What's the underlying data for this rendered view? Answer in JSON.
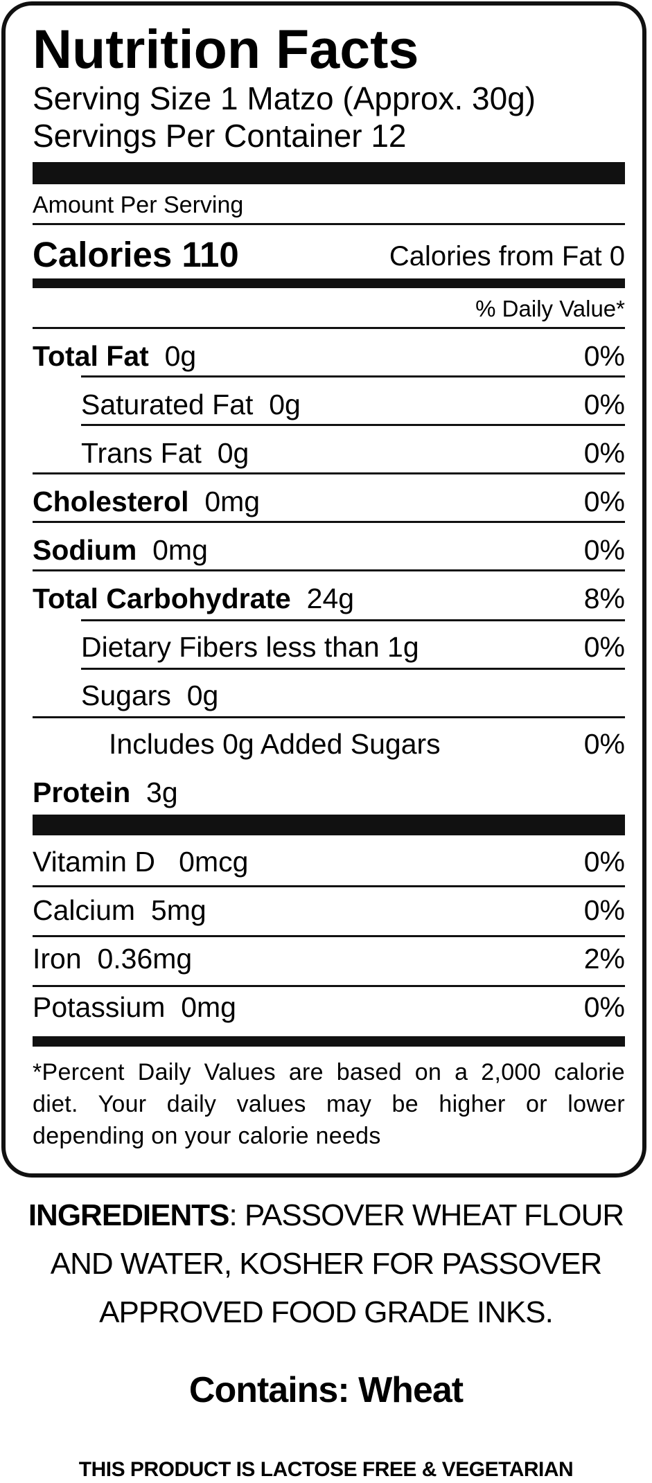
{
  "label": {
    "title": "Nutrition Facts",
    "serving_size": "Serving Size 1 Matzo (Approx. 30g)",
    "servings_per_container": "Servings Per Container 12",
    "amount_per_serving": "Amount Per Serving",
    "calories": "Calories 110",
    "calories_from_fat": "Calories from Fat 0",
    "daily_value_header": "% Daily Value*",
    "nutrients": [
      {
        "label": "Total Fat",
        "amount": "0g",
        "dv": "0%"
      },
      {
        "label": "Saturated Fat",
        "amount": "0g",
        "dv": "0%"
      },
      {
        "label": "Trans Fat",
        "amount": "0g",
        "dv": "0%"
      },
      {
        "label": "Cholesterol",
        "amount": "0mg",
        "dv": "0%"
      },
      {
        "label": "Sodium",
        "amount": "0mg",
        "dv": "0%"
      },
      {
        "label": "Total Carbohydrate",
        "amount": "24g",
        "dv": "8%"
      },
      {
        "label": "Dietary Fibers less than 1g",
        "amount": "",
        "dv": "0%"
      },
      {
        "label": "Sugars",
        "amount": "0g",
        "dv": ""
      },
      {
        "label": "Includes 0g Added Sugars",
        "amount": "",
        "dv": "0%"
      },
      {
        "label": "Protein",
        "amount": "3g",
        "dv": ""
      }
    ],
    "vitamins": [
      {
        "label": "Vitamin D",
        "amount": "0mcg",
        "dv": "0%"
      },
      {
        "label": "Calcium",
        "amount": "5mg",
        "dv": "0%"
      },
      {
        "label": "Iron",
        "amount": "0.36mg",
        "dv": "2%"
      },
      {
        "label": "Potassium",
        "amount": "0mg",
        "dv": "0%"
      }
    ],
    "footnote": "*Percent Daily Values are based on a 2,000 calorie diet. Your daily values may be higher or lower depending on your calorie needs"
  },
  "ingredients": {
    "label": "INGREDIENTS",
    "text": ": PASSOVER WHEAT FLOUR AND WATER, KOSHER FOR PASSOVER APPROVED FOOD GRADE INKS."
  },
  "contains": "Contains: Wheat",
  "lactose_note": "THIS PRODUCT IS LACTOSE FREE & VEGETARIAN"
}
